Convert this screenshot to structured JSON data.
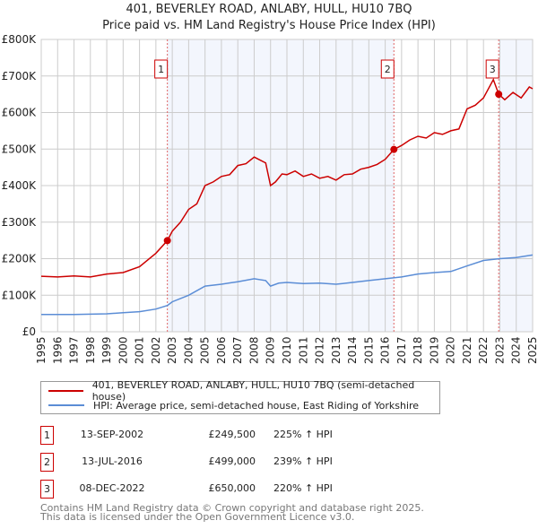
{
  "chart_data": {
    "type": "line",
    "title": "401, BEVERLEY ROAD, ANLABY, HULL, HU10 7BQ",
    "subtitle": "Price paid vs. HM Land Registry's House Price Index (HPI)",
    "xlim": [
      1995,
      2025
    ],
    "ylim": [
      0,
      800000
    ],
    "y_ticks": [
      {
        "v": 0,
        "label": "£0"
      },
      {
        "v": 100000,
        "label": "£100K"
      },
      {
        "v": 200000,
        "label": "£200K"
      },
      {
        "v": 300000,
        "label": "£300K"
      },
      {
        "v": 400000,
        "label": "£400K"
      },
      {
        "v": 500000,
        "label": "£500K"
      },
      {
        "v": 600000,
        "label": "£600K"
      },
      {
        "v": 700000,
        "label": "£700K"
      },
      {
        "v": 800000,
        "label": "£800K"
      }
    ],
    "x_ticks": [
      "1995",
      "1996",
      "1997",
      "1998",
      "1999",
      "2000",
      "2001",
      "2002",
      "2003",
      "2004",
      "2005",
      "2006",
      "2007",
      "2008",
      "2009",
      "2010",
      "2011",
      "2012",
      "2013",
      "2014",
      "2015",
      "2016",
      "2017",
      "2018",
      "2019",
      "2020",
      "2021",
      "2022",
      "2023",
      "2024",
      "2025"
    ],
    "grid": true,
    "legend_placement": "below",
    "series": [
      {
        "name": "401, BEVERLEY ROAD, ANLABY, HULL, HU10 7BQ (semi-detached house)",
        "color": "#cc0000",
        "x": [
          1995,
          1996,
          1997,
          1998,
          1999,
          2000,
          2001,
          2002,
          2002.7,
          2003,
          2003.5,
          2004,
          2004.5,
          2005,
          2005.5,
          2006,
          2006.5,
          2007,
          2007.5,
          2008,
          2008.7,
          2009,
          2009.3,
          2009.7,
          2010,
          2010.5,
          2011,
          2011.5,
          2012,
          2012.5,
          2013,
          2013.5,
          2014,
          2014.5,
          2015,
          2015.5,
          2016,
          2016.53,
          2017,
          2017.5,
          2018,
          2018.5,
          2019,
          2019.5,
          2020,
          2020.5,
          2021,
          2021.5,
          2022,
          2022.6,
          2022.93,
          2023.3,
          2023.8,
          2024.3,
          2024.8,
          2025
        ],
        "y": [
          152000,
          150000,
          153000,
          150000,
          158000,
          162000,
          178000,
          215000,
          249500,
          275000,
          300000,
          335000,
          350000,
          400000,
          410000,
          425000,
          430000,
          455000,
          460000,
          478000,
          462000,
          400000,
          410000,
          432000,
          430000,
          440000,
          425000,
          432000,
          420000,
          425000,
          415000,
          430000,
          432000,
          445000,
          450000,
          458000,
          472000,
          499000,
          510000,
          525000,
          535000,
          530000,
          545000,
          540000,
          550000,
          555000,
          610000,
          620000,
          640000,
          690000,
          650000,
          635000,
          655000,
          640000,
          670000,
          665000
        ]
      },
      {
        "name": "HPI: Average price, semi-detached house, East Riding of Yorkshire",
        "color": "#5b8dd6",
        "x": [
          1995,
          1996,
          1997,
          1998,
          1999,
          2000,
          2001,
          2002,
          2002.7,
          2003,
          2004,
          2005,
          2006,
          2007,
          2008,
          2008.7,
          2009,
          2009.5,
          2010,
          2011,
          2012,
          2013,
          2014,
          2015,
          2016,
          2017,
          2018,
          2019,
          2020,
          2021,
          2022,
          2023,
          2024,
          2025
        ],
        "y": [
          47000,
          47000,
          47000,
          48000,
          49000,
          52000,
          55000,
          62000,
          72000,
          82000,
          100000,
          125000,
          130000,
          137000,
          145000,
          140000,
          125000,
          133000,
          135000,
          132000,
          133000,
          130000,
          135000,
          140000,
          145000,
          150000,
          158000,
          162000,
          165000,
          180000,
          195000,
          200000,
          203000,
          210000
        ]
      }
    ],
    "sales": [
      {
        "label": "1",
        "x": 2002.7,
        "y": 249500,
        "date": "13-SEP-2002",
        "price": "£249,500",
        "pct": "225% ↑ HPI"
      },
      {
        "label": "2",
        "x": 2016.53,
        "y": 499000,
        "date": "13-JUL-2016",
        "price": "£499,000",
        "pct": "239% ↑ HPI"
      },
      {
        "label": "3",
        "x": 2022.93,
        "y": 650000,
        "date": "08-DEC-2022",
        "price": "£650,000",
        "pct": "220% ↑ HPI"
      }
    ]
  },
  "footer": {
    "line1": "Contains HM Land Registry data © Crown copyright and database right 2025.",
    "line2": "This data is licensed under the Open Government Licence v3.0."
  }
}
